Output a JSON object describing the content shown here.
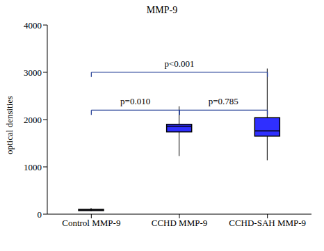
{
  "chart_data": {
    "type": "box",
    "title": "MMP-9",
    "y_label": "optical densities",
    "categories": [
      "Control MMP-9",
      "CCHD MMP-9",
      "CCHD-SAH MMP-9"
    ],
    "boxes": {
      "min": [
        60,
        1230,
        1140
      ],
      "q1": [
        75,
        1740,
        1650
      ],
      "median": [
        90,
        1860,
        1760
      ],
      "q3": [
        100,
        1900,
        2040
      ],
      "max": [
        130,
        2280,
        3080
      ]
    },
    "colors": [
      "#2f2fff",
      "#2f2fff",
      "#2f2fff"
    ],
    "ylim": [
      0,
      4000
    ],
    "yticks": [
      0,
      1000,
      2000,
      3000,
      4000
    ],
    "grid": false,
    "annotations": [
      {
        "text": "p=0.010",
        "from": 0,
        "to": 1
      },
      {
        "text": "p=0.785",
        "from": 1,
        "to": 2
      },
      {
        "text": "p<0.001",
        "from": 0,
        "to": 2
      }
    ]
  }
}
